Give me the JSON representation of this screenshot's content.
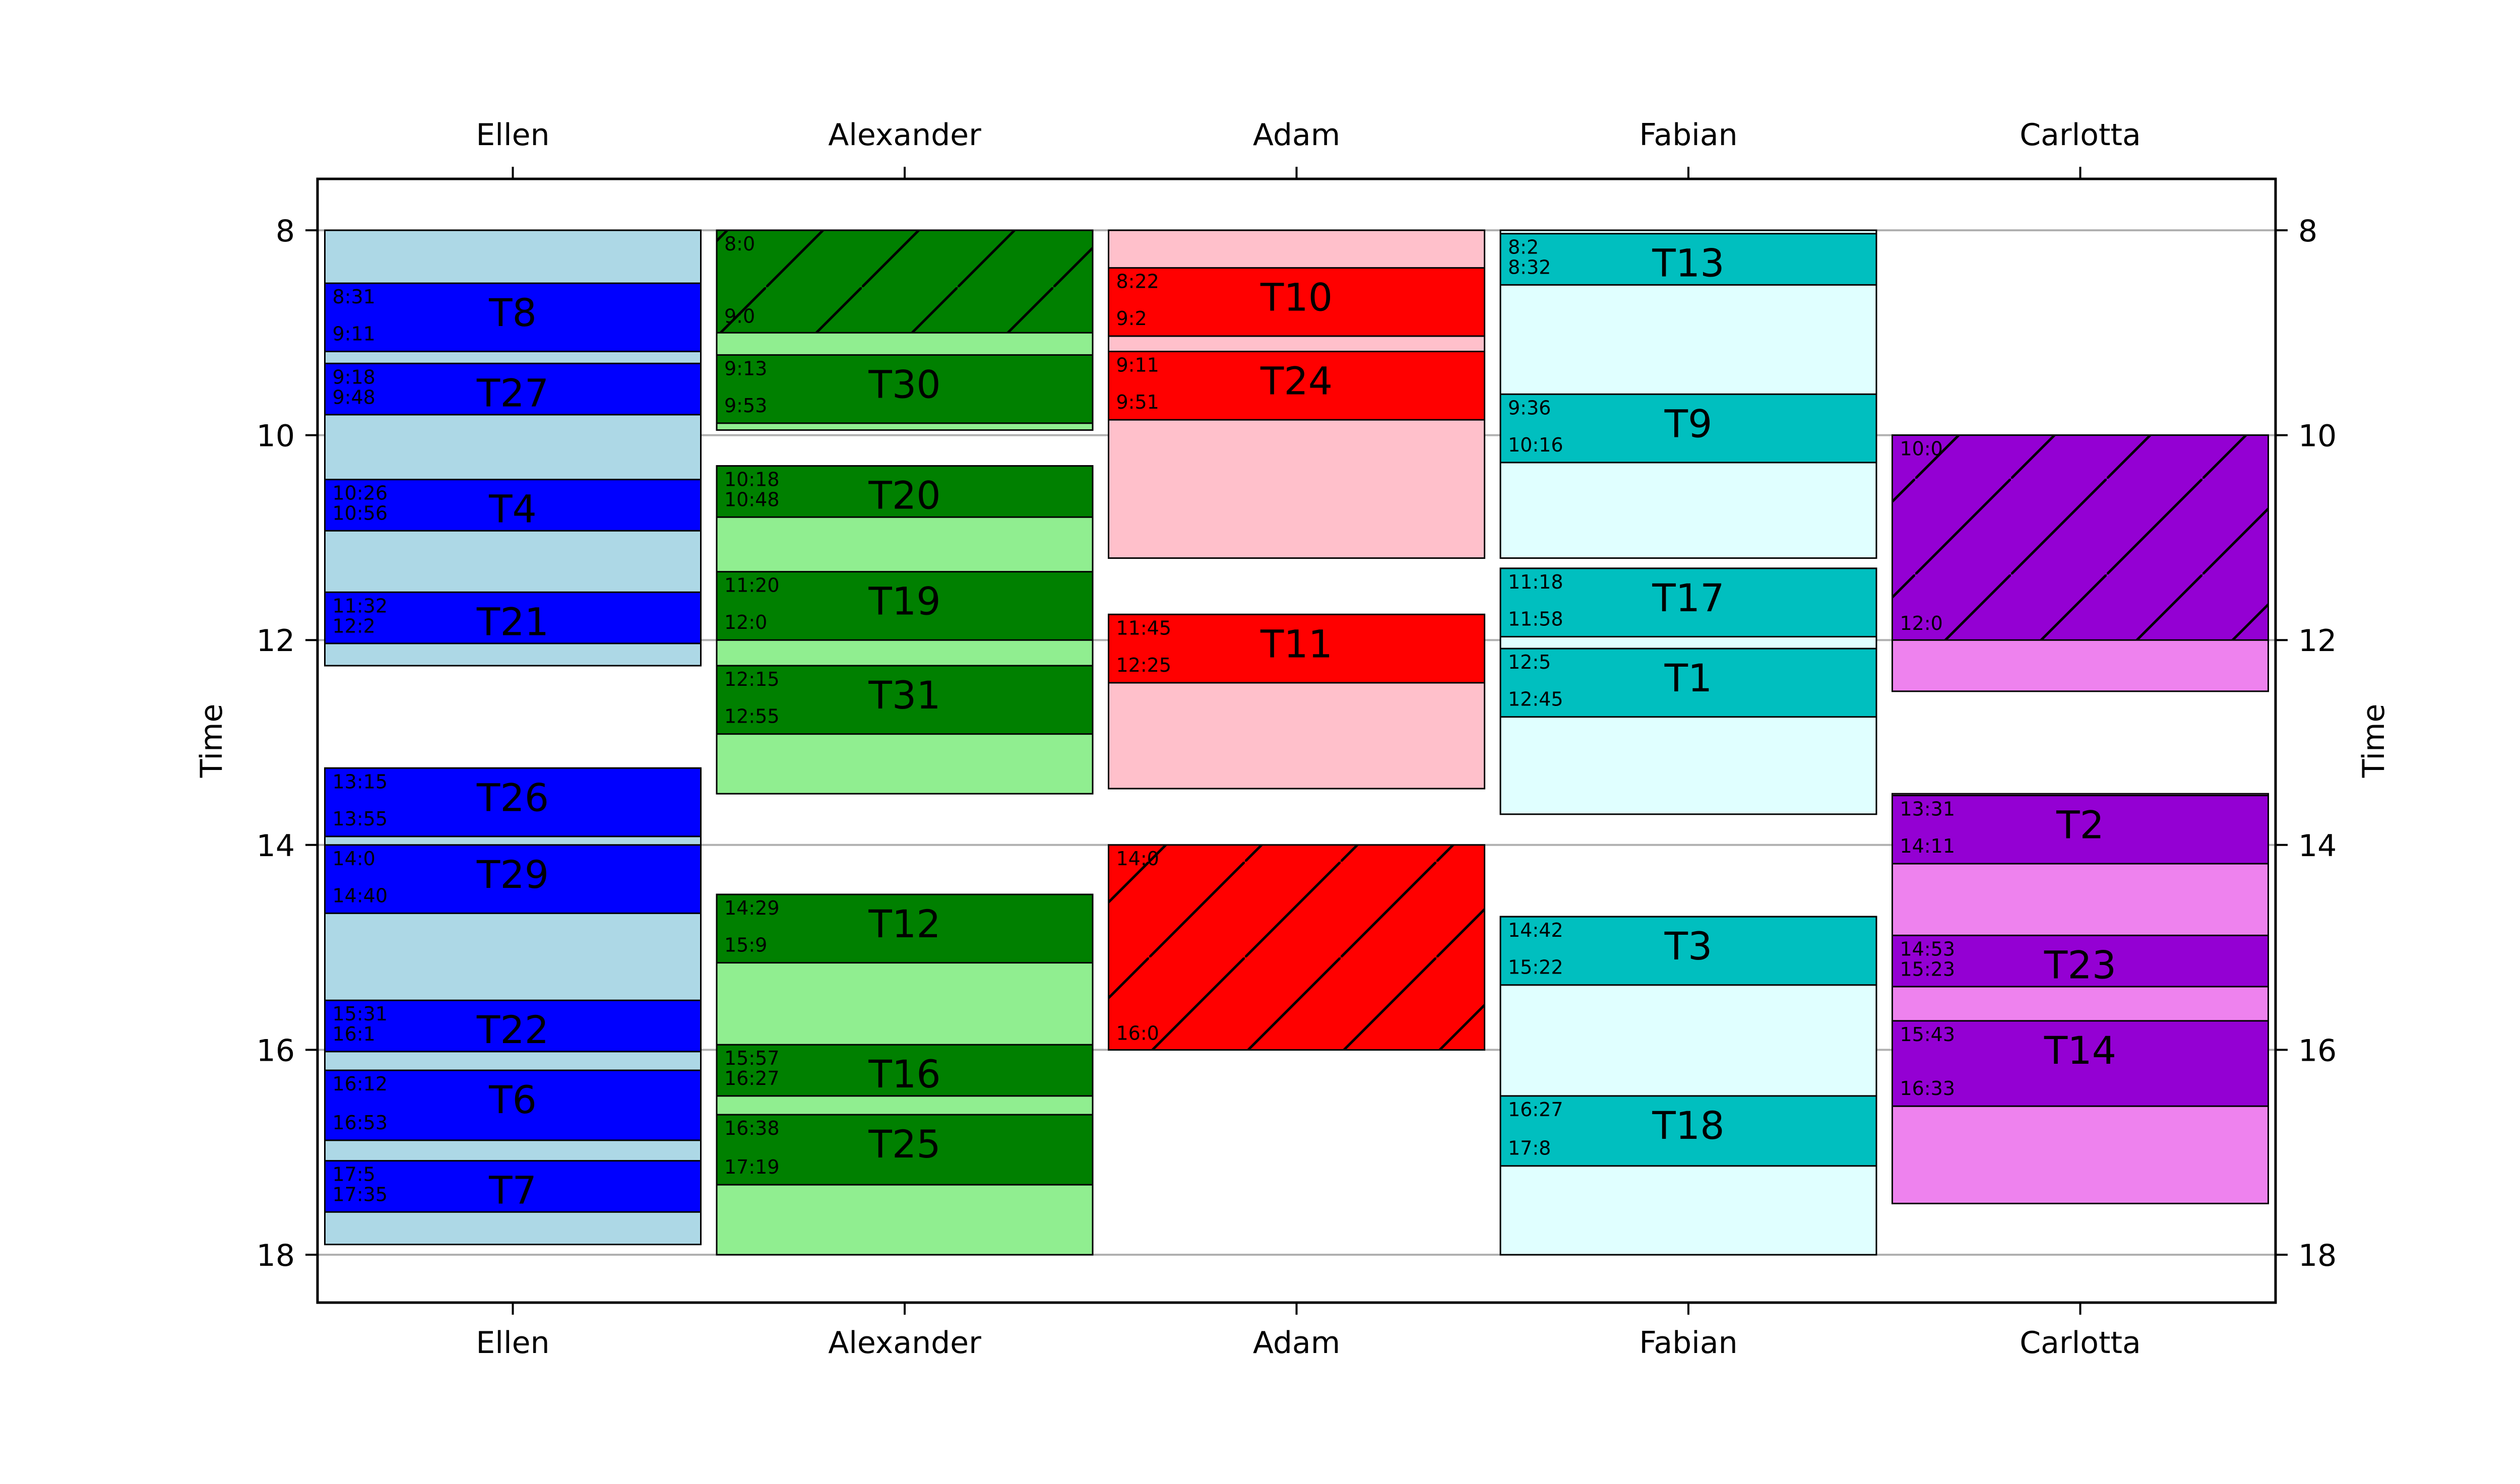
{
  "chart_data": {
    "type": "gantt",
    "title": "",
    "xlabel": "",
    "ylabel": "Time",
    "ylim": [
      7.5,
      18.5
    ],
    "yticks": [
      "8",
      "10",
      "12",
      "14",
      "16",
      "18"
    ],
    "grid": "horizontal at y ticks",
    "categories": [
      "Ellen",
      "Alexander",
      "Adam",
      "Fabian",
      "Carlotta"
    ],
    "series": [
      {
        "name": "Ellen",
        "colors": {
          "light": "#add8e6",
          "dark": "#0000ff"
        },
        "availability": [
          {
            "start": 8.0,
            "end": 12.25
          },
          {
            "start": 13.25,
            "end": 17.9
          }
        ],
        "blocked": [],
        "tasks": [
          {
            "label": "T8",
            "start": 8.517,
            "end": 9.183,
            "start_text": "8:31",
            "end_text": "9:11"
          },
          {
            "label": "T27",
            "start": 9.3,
            "end": 9.8,
            "start_text": "9:18",
            "end_text": "9:48"
          },
          {
            "label": "T4",
            "start": 10.433,
            "end": 10.933,
            "start_text": "10:26",
            "end_text": "10:56"
          },
          {
            "label": "T21",
            "start": 11.533,
            "end": 12.033,
            "start_text": "11:32",
            "end_text": "12:2"
          },
          {
            "label": "T26",
            "start": 13.25,
            "end": 13.917,
            "start_text": "13:15",
            "end_text": "13:55"
          },
          {
            "label": "T29",
            "start": 14.0,
            "end": 14.667,
            "start_text": "14:0",
            "end_text": "14:40"
          },
          {
            "label": "T22",
            "start": 15.517,
            "end": 16.017,
            "start_text": "15:31",
            "end_text": "16:1"
          },
          {
            "label": "T6",
            "start": 16.2,
            "end": 16.883,
            "start_text": "16:12",
            "end_text": "16:53"
          },
          {
            "label": "T7",
            "start": 17.083,
            "end": 17.583,
            "start_text": "17:5",
            "end_text": "17:35"
          }
        ]
      },
      {
        "name": "Alexander",
        "colors": {
          "light": "#90ee90",
          "dark": "#008000"
        },
        "availability": [
          {
            "start": 8.0,
            "end": 9.95
          },
          {
            "start": 10.3,
            "end": 13.5
          },
          {
            "start": 14.483,
            "end": 18.0
          }
        ],
        "blocked": [
          {
            "start": 8.0,
            "end": 9.0,
            "start_text": "8:0",
            "end_text": "9:0"
          }
        ],
        "tasks": [
          {
            "label": "T30",
            "start": 9.217,
            "end": 9.883,
            "start_text": "9:13",
            "end_text": "9:53"
          },
          {
            "label": "T20",
            "start": 10.3,
            "end": 10.8,
            "start_text": "10:18",
            "end_text": "10:48"
          },
          {
            "label": "T19",
            "start": 11.333,
            "end": 12.0,
            "start_text": "11:20",
            "end_text": "12:0"
          },
          {
            "label": "T31",
            "start": 12.25,
            "end": 12.917,
            "start_text": "12:15",
            "end_text": "12:55"
          },
          {
            "label": "T12",
            "start": 14.483,
            "end": 15.15,
            "start_text": "14:29",
            "end_text": "15:9"
          },
          {
            "label": "T16",
            "start": 15.95,
            "end": 16.45,
            "start_text": "15:57",
            "end_text": "16:27"
          },
          {
            "label": "T25",
            "start": 16.633,
            "end": 17.317,
            "start_text": "16:38",
            "end_text": "17:19"
          }
        ]
      },
      {
        "name": "Adam",
        "colors": {
          "light": "#ffc0cb",
          "dark": "#ff0000"
        },
        "availability": [
          {
            "start": 8.0,
            "end": 11.2
          },
          {
            "start": 11.75,
            "end": 13.45
          }
        ],
        "blocked": [
          {
            "start": 14.0,
            "end": 16.0,
            "start_text": "14:0",
            "end_text": "16:0"
          }
        ],
        "tasks": [
          {
            "label": "T10",
            "start": 8.367,
            "end": 9.033,
            "start_text": "8:22",
            "end_text": "9:2"
          },
          {
            "label": "T24",
            "start": 9.183,
            "end": 9.85,
            "start_text": "9:11",
            "end_text": "9:51"
          },
          {
            "label": "T11",
            "start": 11.75,
            "end": 12.417,
            "start_text": "11:45",
            "end_text": "12:25"
          }
        ]
      },
      {
        "name": "Fabian",
        "colors": {
          "light": "#e0ffff",
          "dark": "#00bfbf"
        },
        "availability": [
          {
            "start": 8.0,
            "end": 11.2
          },
          {
            "start": 11.3,
            "end": 13.7
          },
          {
            "start": 14.7,
            "end": 18.0
          }
        ],
        "blocked": [],
        "tasks": [
          {
            "label": "T13",
            "start": 8.033,
            "end": 8.533,
            "start_text": "8:2",
            "end_text": "8:32"
          },
          {
            "label": "T9",
            "start": 9.6,
            "end": 10.267,
            "start_text": "9:36",
            "end_text": "10:16"
          },
          {
            "label": "T17",
            "start": 11.3,
            "end": 11.967,
            "start_text": "11:18",
            "end_text": "11:58"
          },
          {
            "label": "T1",
            "start": 12.083,
            "end": 12.75,
            "start_text": "12:5",
            "end_text": "12:45"
          },
          {
            "label": "T3",
            "start": 14.7,
            "end": 15.367,
            "start_text": "14:42",
            "end_text": "15:22"
          },
          {
            "label": "T18",
            "start": 16.45,
            "end": 17.133,
            "start_text": "16:27",
            "end_text": "17:8"
          }
        ]
      },
      {
        "name": "Carlotta",
        "colors": {
          "light": "#ee82ee",
          "dark": "#9400d3"
        },
        "availability": [
          {
            "start": 10.0,
            "end": 12.5
          },
          {
            "start": 13.5,
            "end": 17.5
          }
        ],
        "blocked": [
          {
            "start": 10.0,
            "end": 12.0,
            "start_text": "10:0",
            "end_text": "12:0"
          }
        ],
        "tasks": [
          {
            "label": "T2",
            "start": 13.517,
            "end": 14.183,
            "start_text": "13:31",
            "end_text": "14:11"
          },
          {
            "label": "T23",
            "start": 14.883,
            "end": 15.383,
            "start_text": "14:53",
            "end_text": "15:23"
          },
          {
            "label": "T14",
            "start": 15.717,
            "end": 16.55,
            "start_text": "15:43",
            "end_text": "16:33"
          }
        ]
      }
    ]
  }
}
